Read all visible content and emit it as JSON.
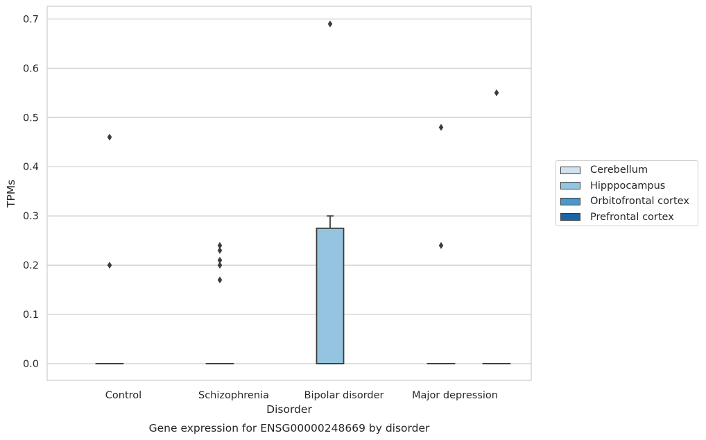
{
  "chart_data": {
    "type": "box",
    "title": "Gene expression for ENSG00000248669 by disorder",
    "xlabel": "Disorder",
    "ylabel": "TPMs",
    "ylim": [
      -0.034,
      0.726
    ],
    "yticks": [
      0.0,
      0.1,
      0.2,
      0.3,
      0.4,
      0.5,
      0.6,
      0.7
    ],
    "ytick_labels": [
      "0.0",
      "0.1",
      "0.2",
      "0.3",
      "0.4",
      "0.5",
      "0.6",
      "0.7"
    ],
    "categories": [
      "Control",
      "Schizophrenia",
      "Bipolar disorder",
      "Major depression"
    ],
    "grid": "horizontal",
    "legend_placement": "right, outside plot",
    "series": [
      {
        "name": "Cerebellum",
        "color": "#d0e1f2",
        "boxes": []
      },
      {
        "name": "Hipppocampus",
        "color": "#94c4df",
        "boxes": [
          {
            "category": "Control",
            "q1": 0,
            "median": 0,
            "q3": 0,
            "whisker_low": 0,
            "whisker_high": 0,
            "outliers": [
              0.46,
              0.2
            ]
          },
          {
            "category": "Schizophrenia",
            "q1": 0,
            "median": 0,
            "q3": 0,
            "whisker_low": 0,
            "whisker_high": 0,
            "outliers": [
              0.24,
              0.23,
              0.21,
              0.2,
              0.17
            ]
          },
          {
            "category": "Bipolar disorder",
            "q1": 0,
            "median": 0,
            "q3": 0.275,
            "whisker_low": 0,
            "whisker_high": 0.3,
            "outliers": [
              0.69
            ]
          },
          {
            "category": "Major depression",
            "q1": 0,
            "median": 0,
            "q3": 0,
            "whisker_low": 0,
            "whisker_high": 0,
            "outliers": [
              0.48,
              0.24
            ]
          }
        ]
      },
      {
        "name": "Orbitofrontal cortex",
        "color": "#4a98c9",
        "boxes": []
      },
      {
        "name": "Prefrontal cortex",
        "color": "#1764ab",
        "boxes": [
          {
            "category": "Major depression",
            "q1": 0,
            "median": 0,
            "q3": 0,
            "whisker_low": 0,
            "whisker_high": 0,
            "outliers": [
              0.55
            ]
          }
        ]
      }
    ]
  }
}
